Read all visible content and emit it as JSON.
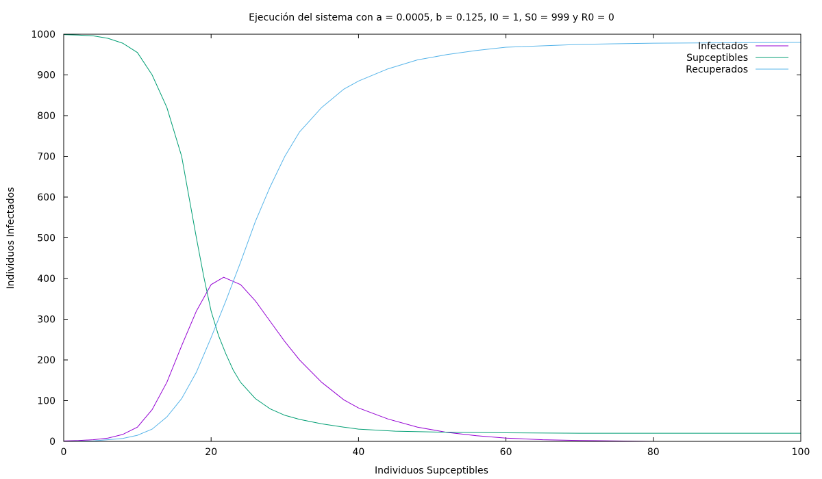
{
  "chart_data": {
    "type": "line",
    "title": "Ejecución del sistema con a = 0.0005, b = 0.125, I0 = 1, S0 = 999 y R0 = 0",
    "xlabel": "Individuos Supceptibles",
    "ylabel": "Individuos Infectados",
    "xlim": [
      0,
      100
    ],
    "ylim": [
      0,
      1000
    ],
    "xticks": [
      0,
      20,
      40,
      60,
      80,
      100
    ],
    "yticks": [
      0,
      100,
      200,
      300,
      400,
      500,
      600,
      700,
      800,
      900,
      1000
    ],
    "grid": false,
    "legend_position": "top-right",
    "series": [
      {
        "name": "Infectados",
        "color": "#9400d3",
        "x": [
          0,
          2,
          4,
          6,
          8,
          10,
          12,
          14,
          16,
          18,
          20,
          21.7,
          24,
          26,
          28,
          30,
          32,
          35,
          38,
          40,
          44,
          48,
          52,
          56,
          60,
          65,
          70,
          75,
          80
        ],
        "y": [
          1,
          2,
          4,
          8,
          17,
          35,
          78,
          145,
          235,
          320,
          385,
          403,
          385,
          345,
          295,
          245,
          200,
          145,
          102,
          82,
          55,
          35,
          22,
          14,
          8,
          4,
          2,
          1,
          0
        ]
      },
      {
        "name": "Supceptibles",
        "color": "#009e73",
        "x": [
          0,
          2,
          4,
          6,
          8,
          10,
          12,
          14,
          16,
          17,
          18,
          19,
          20,
          21,
          22,
          23,
          24,
          26,
          28,
          30,
          32,
          35,
          38,
          40,
          45,
          50,
          60,
          70,
          80,
          90,
          100
        ],
        "y": [
          999,
          998,
          996,
          990,
          978,
          955,
          900,
          820,
          700,
          600,
          500,
          405,
          320,
          260,
          215,
          175,
          145,
          105,
          80,
          64,
          54,
          43,
          35,
          30,
          25,
          23,
          21,
          20,
          20,
          20,
          20
        ]
      },
      {
        "name": "Recuperados",
        "color": "#56b4e9",
        "x": [
          0,
          4,
          8,
          10,
          12,
          14,
          16,
          18,
          20,
          22,
          24,
          26,
          28,
          30,
          32,
          35,
          38,
          40,
          44,
          48,
          52,
          56,
          60,
          70,
          80,
          90,
          100
        ],
        "y": [
          0,
          1,
          7,
          15,
          30,
          60,
          105,
          170,
          255,
          345,
          440,
          540,
          625,
          700,
          760,
          820,
          865,
          885,
          915,
          937,
          950,
          960,
          968,
          975,
          978,
          979,
          980
        ]
      }
    ]
  }
}
